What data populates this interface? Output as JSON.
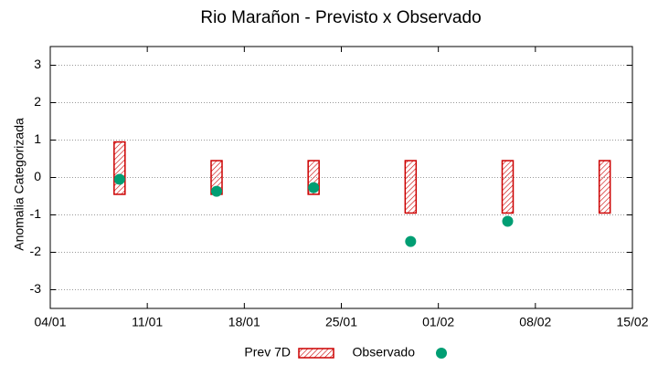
{
  "chart_data": {
    "type": "range_scatter",
    "title": "Rio Marañon - Previsto x Observado",
    "y_label": "Anomalia Categorizada",
    "x": [
      "09/01",
      "16/01",
      "23/01",
      "30/01",
      "06/02",
      "13/02"
    ],
    "xlim": [
      "04/01",
      "15/02"
    ],
    "xticks": [
      "04/01",
      "11/01",
      "18/01",
      "25/01",
      "01/02",
      "08/02",
      "15/02"
    ],
    "ylim": [
      -3.5,
      3.5
    ],
    "yticks": [
      -3,
      -2,
      -1,
      0,
      1,
      2,
      3
    ],
    "grid": true,
    "series": [
      {
        "name": "Prev 7D",
        "color": "#cc0000",
        "low": [
          -0.45,
          -0.45,
          -0.45,
          -0.95,
          -0.95,
          -0.95
        ],
        "high": [
          0.95,
          0.45,
          0.45,
          0.45,
          0.45,
          0.45
        ]
      },
      {
        "name": "Observado",
        "color": "#009e73",
        "values": [
          -0.05,
          -0.37,
          -0.27,
          -1.71,
          -1.17,
          null
        ]
      }
    ]
  }
}
